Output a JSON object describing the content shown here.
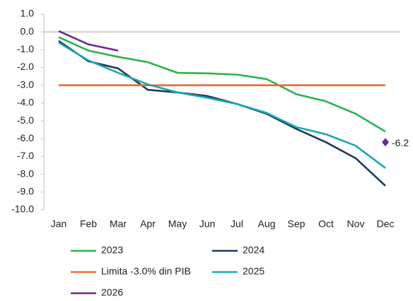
{
  "chart_data": {
    "type": "line",
    "categories": [
      "Jan",
      "Feb",
      "Mar",
      "Apr",
      "May",
      "Jun",
      "Jul",
      "Aug",
      "Sep",
      "Oct",
      "Nov",
      "Dec"
    ],
    "series": [
      {
        "name": "2023",
        "color": "#2eb24b",
        "values": [
          -0.3,
          -1.05,
          -1.4,
          -1.7,
          -2.3,
          -2.33,
          -2.4,
          -2.65,
          -3.5,
          -3.9,
          -4.6,
          -5.6
        ]
      },
      {
        "name": "2024",
        "color": "#1f3b57",
        "values": [
          -0.5,
          -1.65,
          -2.05,
          -3.25,
          -3.4,
          -3.6,
          -4.05,
          -4.6,
          -5.45,
          -6.2,
          -7.1,
          -8.65
        ]
      },
      {
        "name": "Limita -3.0% din PIB",
        "color": "#f26b2c",
        "values": [
          -3,
          -3,
          -3,
          -3,
          -3,
          -3,
          -3,
          -3,
          -3,
          -3,
          -3,
          -3
        ]
      },
      {
        "name": "2025",
        "color": "#19a8b0",
        "values": [
          -0.6,
          -1.6,
          -2.3,
          -2.95,
          -3.4,
          -3.7,
          -4.05,
          -4.55,
          -5.35,
          -5.75,
          -6.4,
          -7.65
        ]
      },
      {
        "name": "2026",
        "color": "#6a2a8e",
        "values": [
          0.05,
          -0.7,
          -1.05,
          null,
          null,
          null,
          null,
          null,
          null,
          null,
          null,
          null
        ]
      }
    ],
    "annotations": [
      {
        "value": -6.2,
        "color": "#6a2a8e"
      }
    ],
    "ylim": [
      -10,
      1
    ],
    "yticks": [
      {
        "value": 1,
        "label": "1.0"
      },
      {
        "value": 0,
        "label": "0.0"
      },
      {
        "value": -1,
        "label": "-1.0"
      },
      {
        "value": -2,
        "label": "-2.0"
      },
      {
        "value": -3,
        "label": "-3.0"
      },
      {
        "value": -4,
        "label": "-4.0"
      },
      {
        "value": -5,
        "label": "-5.0"
      },
      {
        "value": -6,
        "label": "-6.0"
      },
      {
        "value": -7,
        "label": "-7.0"
      },
      {
        "value": -8,
        "label": "-8.0"
      },
      {
        "value": -9,
        "label": "-9.0"
      },
      {
        "value": -10,
        "label": "-10.0"
      }
    ],
    "legend": "bottom"
  }
}
